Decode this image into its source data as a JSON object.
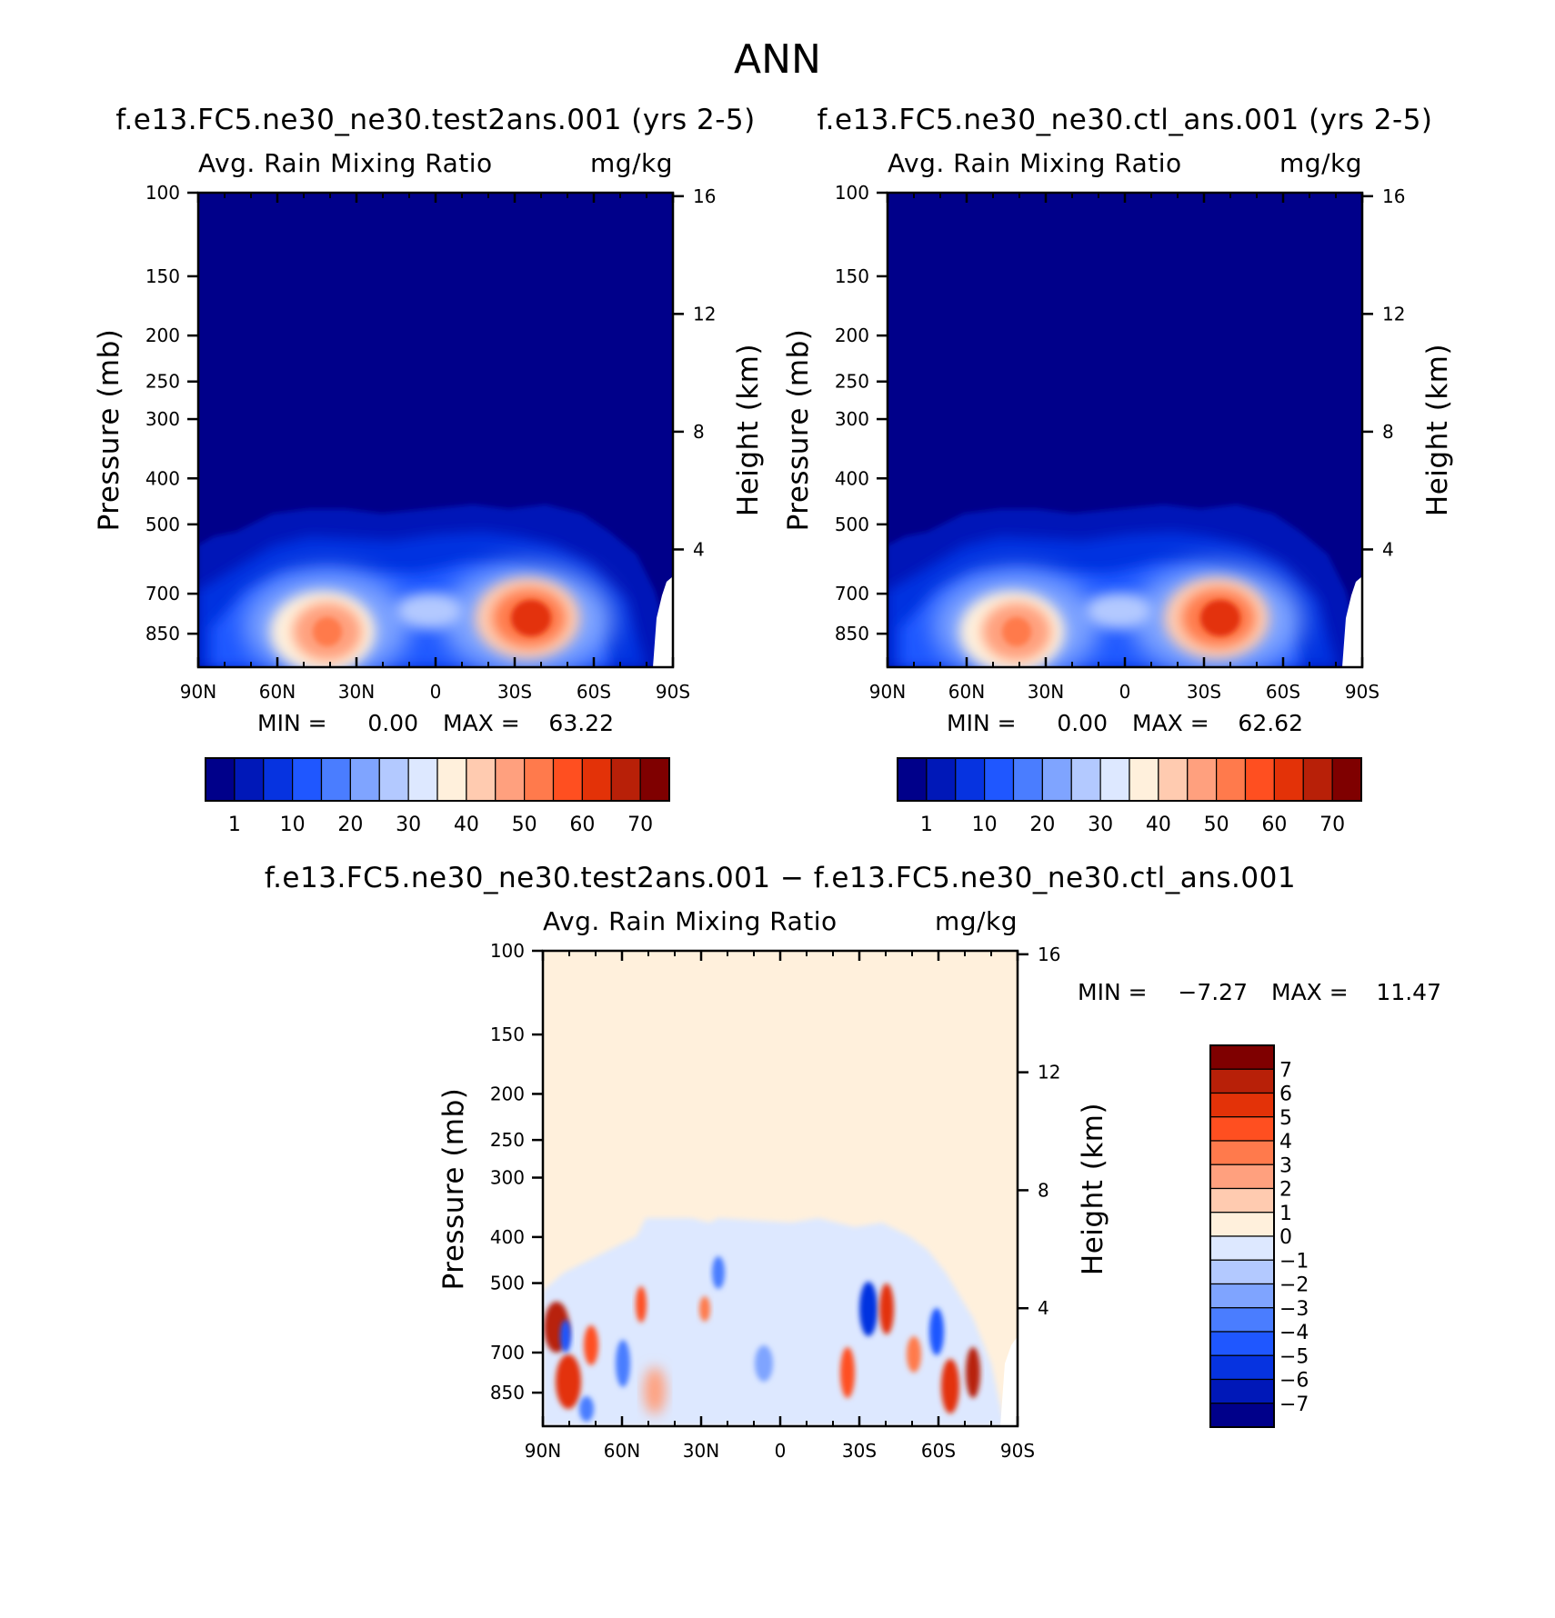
{
  "chart_data": [
    {
      "type": "heatmap",
      "title": "f.e13.FC5.ne30_ne30.test2ans.001 (yrs 2-5)",
      "subtitle_left": "Avg. Rain Mixing Ratio",
      "units": "mg/kg",
      "xlabel": "",
      "ylabel": "Pressure (mb)",
      "y2label": "Height (km)",
      "x_ticks": [
        "90N",
        "60N",
        "30N",
        "0",
        "30S",
        "60S",
        "90S"
      ],
      "y_ticks": [
        "100",
        "150",
        "200",
        "250",
        "300",
        "400",
        "500",
        "700",
        "850"
      ],
      "y_values": [
        100,
        150,
        200,
        250,
        300,
        400,
        500,
        700,
        850
      ],
      "y2_ticks": [
        "16",
        "12",
        "8",
        "4"
      ],
      "y2_values": [
        16,
        12,
        8,
        4
      ],
      "min_label": "MIN =",
      "min_value": "0.00",
      "max_label": "MAX =",
      "max_value": "63.22",
      "colorbar_labels": [
        "1",
        "10",
        "20",
        "30",
        "40",
        "50",
        "60",
        "70"
      ],
      "colors": [
        "#00008a",
        "#0018b8",
        "#0633e0",
        "#1f57ff",
        "#4a7dff",
        "#7fa4ff",
        "#b3c9ff",
        "#dde8ff",
        "#fff0dc",
        "#ffcbb0",
        "#ffa07e",
        "#ff7a4c",
        "#ff4f20",
        "#e33208",
        "#b82008",
        "#7f0000"
      ]
    },
    {
      "type": "heatmap",
      "title": "f.e13.FC5.ne30_ne30.ctl_ans.001 (yrs 2-5)",
      "subtitle_left": "Avg. Rain Mixing Ratio",
      "units": "mg/kg",
      "xlabel": "",
      "ylabel": "Pressure (mb)",
      "y2label": "Height (km)",
      "x_ticks": [
        "90N",
        "60N",
        "30N",
        "0",
        "30S",
        "60S",
        "90S"
      ],
      "y_ticks": [
        "100",
        "150",
        "200",
        "250",
        "300",
        "400",
        "500",
        "700",
        "850"
      ],
      "y_values": [
        100,
        150,
        200,
        250,
        300,
        400,
        500,
        700,
        850
      ],
      "y2_ticks": [
        "16",
        "12",
        "8",
        "4"
      ],
      "y2_values": [
        16,
        12,
        8,
        4
      ],
      "min_label": "MIN =",
      "min_value": "0.00",
      "max_label": "MAX =",
      "max_value": "62.62",
      "colorbar_labels": [
        "1",
        "10",
        "20",
        "30",
        "40",
        "50",
        "60",
        "70"
      ],
      "colors": [
        "#00008a",
        "#0018b8",
        "#0633e0",
        "#1f57ff",
        "#4a7dff",
        "#7fa4ff",
        "#b3c9ff",
        "#dde8ff",
        "#fff0dc",
        "#ffcbb0",
        "#ffa07e",
        "#ff7a4c",
        "#ff4f20",
        "#e33208",
        "#b82008",
        "#7f0000"
      ]
    },
    {
      "type": "heatmap",
      "title": "f.e13.FC5.ne30_ne30.test2ans.001 − f.e13.FC5.ne30_ne30.ctl_ans.001",
      "subtitle_left": "Avg. Rain Mixing Ratio",
      "units": "mg/kg",
      "xlabel": "",
      "ylabel": "Pressure (mb)",
      "y2label": "Height (km)",
      "x_ticks": [
        "90N",
        "60N",
        "30N",
        "0",
        "30S",
        "60S",
        "90S"
      ],
      "y_ticks": [
        "100",
        "150",
        "200",
        "250",
        "300",
        "400",
        "500",
        "700",
        "850"
      ],
      "y_values": [
        100,
        150,
        200,
        250,
        300,
        400,
        500,
        700,
        850
      ],
      "y2_ticks": [
        "16",
        "12",
        "8",
        "4"
      ],
      "y2_values": [
        16,
        12,
        8,
        4
      ],
      "min_label": "MIN =",
      "min_value": "−7.27",
      "max_label": "MAX =",
      "max_value": "11.47",
      "colorbar_labels": [
        "7",
        "6",
        "5",
        "4",
        "3",
        "2",
        "1",
        "0",
        "−1",
        "−2",
        "−3",
        "−4",
        "−5",
        "−6",
        "−7"
      ],
      "colors": [
        "#7f0000",
        "#b82008",
        "#e33208",
        "#ff4f20",
        "#ff7a4c",
        "#ffa07e",
        "#ffcbb0",
        "#fff0dc",
        "#dde8ff",
        "#b3c9ff",
        "#7fa4ff",
        "#4a7dff",
        "#1f57ff",
        "#0633e0",
        "#0018b8",
        "#00008a"
      ]
    }
  ],
  "figure": {
    "title": "ANN"
  }
}
